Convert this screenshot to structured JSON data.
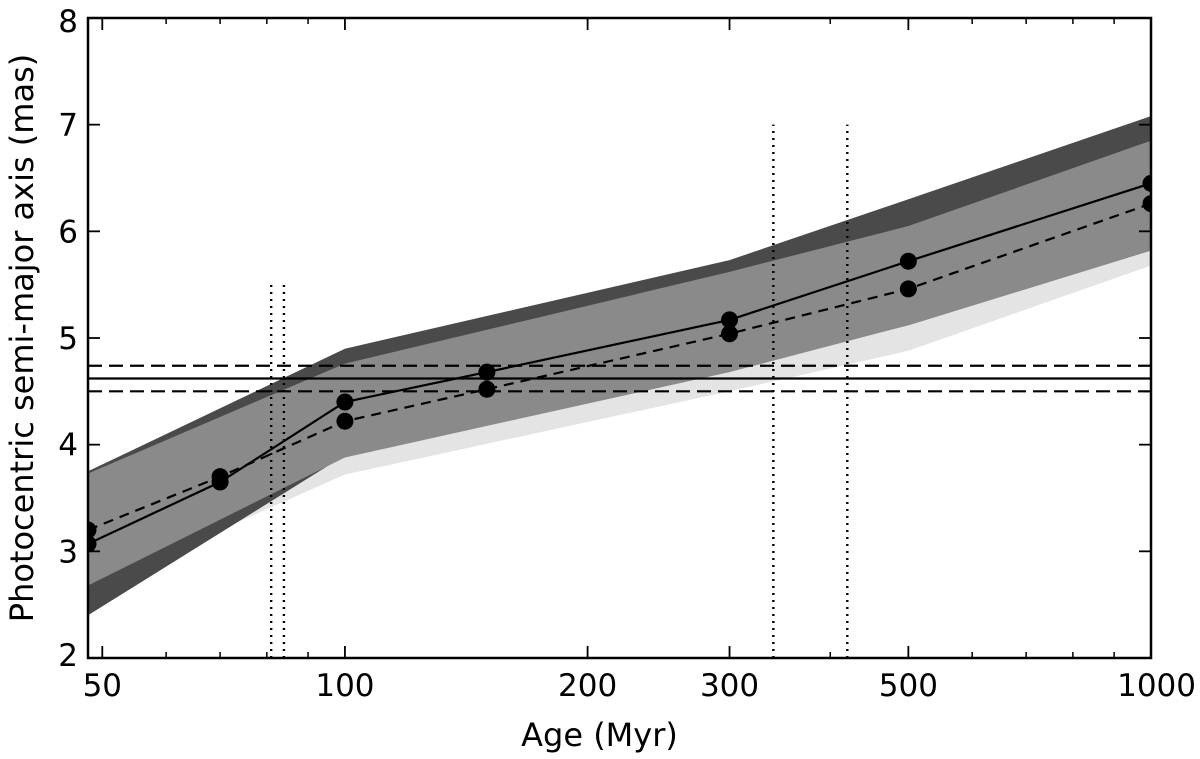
{
  "chart_data": {
    "type": "line",
    "xscale": "log",
    "xlabel": "Age (Myr)",
    "ylabel": "Photocentric semi-major axis (mas)",
    "xlim": [
      48,
      1000
    ],
    "ylim": [
      2,
      8
    ],
    "grid": false,
    "legend": "none",
    "x_tick_values": [
      50,
      100,
      200,
      300,
      500,
      1000
    ],
    "x_tick_labels": [
      "50",
      "100",
      "200",
      "300",
      "500",
      "1000"
    ],
    "y_tick_values": [
      2,
      3,
      4,
      5,
      6,
      7,
      8
    ],
    "y_tick_labels": [
      "2",
      "3",
      "4",
      "5",
      "6",
      "7",
      "8"
    ],
    "series": [
      {
        "style": "solid",
        "color": "#000000",
        "x": [
          48,
          70,
          100,
          150,
          300,
          500,
          1000
        ],
        "y": [
          3.07,
          3.65,
          4.4,
          4.68,
          5.17,
          5.72,
          6.45
        ]
      },
      {
        "style": "dashed",
        "color": "#000000",
        "x": [
          48,
          70,
          100,
          150,
          300,
          500,
          1000
        ],
        "y": [
          3.2,
          3.7,
          4.22,
          4.52,
          5.04,
          5.46,
          6.26
        ]
      }
    ],
    "bands": [
      {
        "color": "#e4e4e4",
        "x": [
          48,
          100,
          300,
          500,
          1000
        ],
        "upper": [
          3.72,
          4.82,
          5.62,
          6.1,
          6.85
        ],
        "lower": [
          2.65,
          3.72,
          4.5,
          4.88,
          5.68
        ]
      },
      {
        "color": "#4a4a4a",
        "x": [
          48,
          100,
          300,
          500,
          1000
        ],
        "upper": [
          3.75,
          4.9,
          5.73,
          6.3,
          7.08
        ],
        "lower": [
          2.4,
          3.9,
          4.7,
          5.12,
          5.82
        ]
      },
      {
        "color": "#8a8a8a",
        "x": [
          48,
          100,
          300,
          500,
          1000
        ],
        "upper": [
          3.73,
          4.76,
          5.62,
          6.05,
          6.85
        ],
        "lower": [
          2.68,
          3.88,
          4.68,
          5.12,
          5.82
        ]
      }
    ],
    "hlines": [
      {
        "y": 4.62,
        "style": "solid"
      },
      {
        "y": 4.74,
        "style": "dashed"
      },
      {
        "y": 4.5,
        "style": "dashed"
      }
    ],
    "vlines": [
      {
        "x": 81,
        "ymax": 5.5,
        "style": "dotted"
      },
      {
        "x": 84,
        "ymax": 5.5,
        "style": "dotted"
      },
      {
        "x": 340,
        "ymax": 7.0,
        "style": "dotted"
      },
      {
        "x": 420,
        "ymax": 7.0,
        "style": "dotted"
      }
    ]
  }
}
